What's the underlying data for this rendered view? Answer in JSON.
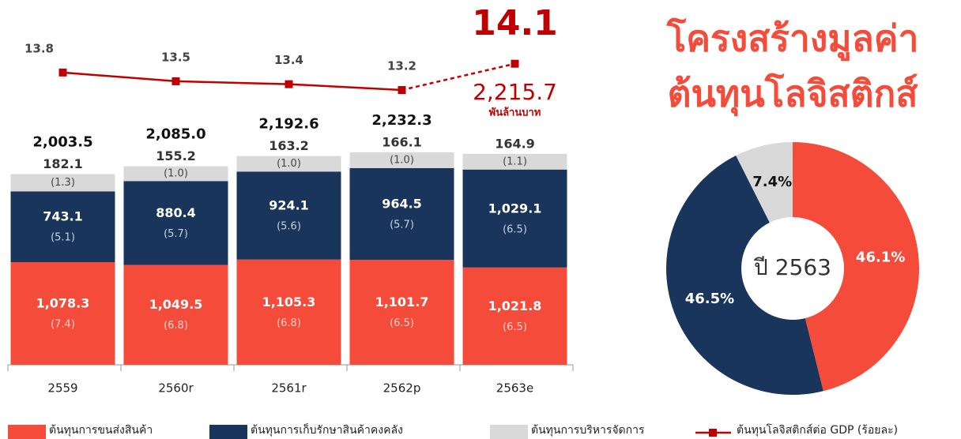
{
  "chart_data": [
    {
      "type": "stacked_bar_line",
      "categories": [
        "2559",
        "2560r",
        "2561r",
        "2562p",
        "2563e"
      ],
      "ylim": [
        0,
        3500
      ],
      "y2lim": [
        3.8,
        15.2
      ],
      "series": [
        {
          "name": "ต้นทุนการขนส่งสินค้า",
          "color": "#f44b3a",
          "values": [
            1078.3,
            1049.5,
            1105.3,
            1101.7,
            1021.8
          ],
          "value_labels": [
            "1,078.3",
            "1,049.5",
            "1,105.3",
            "1,101.7",
            "1,021.8"
          ],
          "gdp_share": [
            7.4,
            6.8,
            6.8,
            6.5,
            6.5
          ],
          "gdp_share_labels": [
            "(7.4)",
            "(6.8)",
            "(6.8)",
            "(6.5)",
            "(6.5)"
          ]
        },
        {
          "name": "ต้นทุนการเก็บรักษาสินค้าคงคลัง",
          "color": "#1a355b",
          "values": [
            743.1,
            880.4,
            924.1,
            964.5,
            1029.1
          ],
          "value_labels": [
            "743.1",
            "880.4",
            "924.1",
            "964.5",
            "1,029.1"
          ],
          "gdp_share": [
            5.1,
            5.7,
            5.6,
            5.7,
            6.5
          ],
          "gdp_share_labels": [
            "(5.1)",
            "(5.7)",
            "(5.6)",
            "(5.7)",
            "(6.5)"
          ]
        },
        {
          "name": "ต้นทุนการบริหารจัดการ",
          "color": "#d9d9d9",
          "values": [
            182.1,
            155.2,
            163.2,
            166.1,
            164.9
          ],
          "gdp_share": [
            1.3,
            1.0,
            1.0,
            1.0,
            1.1
          ],
          "gdp_share_labels": [
            "(1.3)",
            "(1.0)",
            "(1.0)",
            "(1.0)",
            "(1.1)"
          ]
        },
        {
          "name": "ต้นทุนโลจิสติกส์ต่อ GDP (ร้อยละ)",
          "color": "#c00000",
          "axis": "y2",
          "values": [
            13.8,
            13.5,
            13.4,
            13.2,
            14.1
          ],
          "dashed_from": 3
        }
      ],
      "totals": [
        2003.5,
        2085.0,
        2192.6,
        2232.3,
        2215.7
      ],
      "total_labels": [
        "2,003.5",
        "2,085.0",
        "2,192.6",
        "2,232.3",
        "2,215.7"
      ],
      "annotation": "พันล้านบาท"
    },
    {
      "type": "donut",
      "title": [
        "โครงสร้างมูลค่า",
        "ต้นทุนโลจิสติกส์"
      ],
      "center_label": "ปี 2563",
      "values": [
        46.1,
        46.5,
        7.4
      ],
      "value_labels": [
        "46.1%",
        "46.5%",
        "7.4%"
      ],
      "colors": [
        "#f44b3a",
        "#1a355b",
        "#d9d9d9"
      ],
      "label_colors": [
        "#ffffff",
        "#ffffff",
        "#111111"
      ]
    }
  ]
}
